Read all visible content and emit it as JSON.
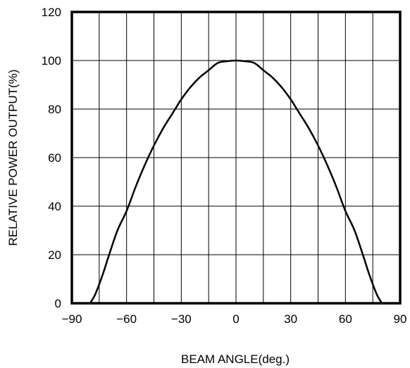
{
  "chart_data": {
    "type": "line",
    "title": "",
    "xlabel": "BEAM ANGLE(deg.)",
    "ylabel": "RELATIVE POWER OUTPUT(%)",
    "xlim": [
      -90,
      90
    ],
    "ylim": [
      0,
      120
    ],
    "x_ticks": [
      -90,
      -75,
      -60,
      -45,
      -30,
      -15,
      0,
      15,
      30,
      45,
      60,
      75,
      90
    ],
    "x_tick_labels": [
      "−90",
      "",
      "−60",
      "",
      "−30",
      "",
      "0",
      "",
      "30",
      "",
      "60",
      "",
      "90"
    ],
    "y_ticks": [
      0,
      20,
      40,
      60,
      80,
      100,
      120
    ],
    "y_tick_labels": [
      "0",
      "20",
      "40",
      "60",
      "80",
      "100",
      "120"
    ],
    "grid": true,
    "series": [
      {
        "x": [
          -80,
          -77,
          -73,
          -70,
          -65,
          -60,
          -55,
          -50,
          -45,
          -40,
          -35,
          -30,
          -25,
          -20,
          -15,
          -10,
          -5,
          0,
          5,
          10,
          15,
          20,
          25,
          30,
          35,
          40,
          45,
          50,
          55,
          60,
          65,
          70,
          73,
          77,
          80
        ],
        "y": [
          0,
          4,
          12,
          19,
          30,
          38,
          48,
          57,
          65,
          72,
          78,
          84,
          89,
          93,
          96,
          99,
          99.7,
          100,
          99.7,
          99,
          96,
          93,
          89,
          84,
          78,
          72,
          65,
          57,
          48,
          38,
          30,
          19,
          12,
          4,
          0
        ]
      }
    ]
  }
}
